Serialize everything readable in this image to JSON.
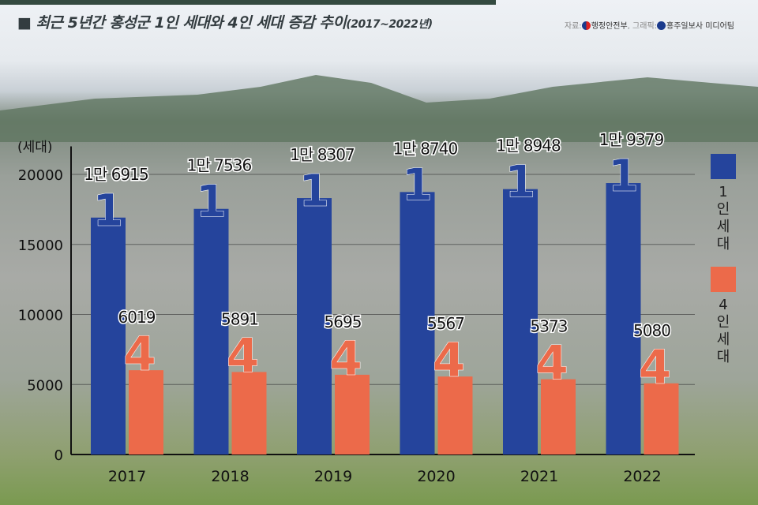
{
  "header": {
    "title": "최근 5년간 홍성군 1인 세대와 4인 세대 증감 추이",
    "title_period": "(2017~2022년)",
    "source_label": "자료:",
    "source": "행정안전부",
    "graphic_label": ", 그래픽:",
    "graphic": "홍주일보사 미디어팀"
  },
  "colors": {
    "one_person": "#25449c",
    "four_person": "#ec6a4a"
  },
  "chart_data": {
    "type": "bar",
    "title": "최근 5년간 홍성군 1인 세대와 4인 세대 증감 추이(2017~2022년)",
    "ylabel": "(세대)",
    "xlabel": "",
    "ylim": [
      0,
      22000
    ],
    "yticks": [
      0,
      5000,
      10000,
      15000,
      20000
    ],
    "grid": true,
    "legend_placement": "right",
    "categories": [
      "2017",
      "2018",
      "2019",
      "2020",
      "2021",
      "2022"
    ],
    "series": [
      {
        "name": "1인 세대",
        "glyph": "1",
        "color": "#25449c",
        "values": [
          16915,
          17536,
          18307,
          18740,
          18948,
          19379
        ],
        "labels": [
          "1만 6915",
          "1만 7536",
          "1만 8307",
          "1만 8740",
          "1만 8948",
          "1만 9379"
        ]
      },
      {
        "name": "4인 세대",
        "glyph": "4",
        "color": "#ec6a4a",
        "values": [
          6019,
          5891,
          5695,
          5567,
          5373,
          5080
        ],
        "labels": [
          "6019",
          "5891",
          "5695",
          "5567",
          "5373",
          "5080"
        ]
      }
    ]
  }
}
